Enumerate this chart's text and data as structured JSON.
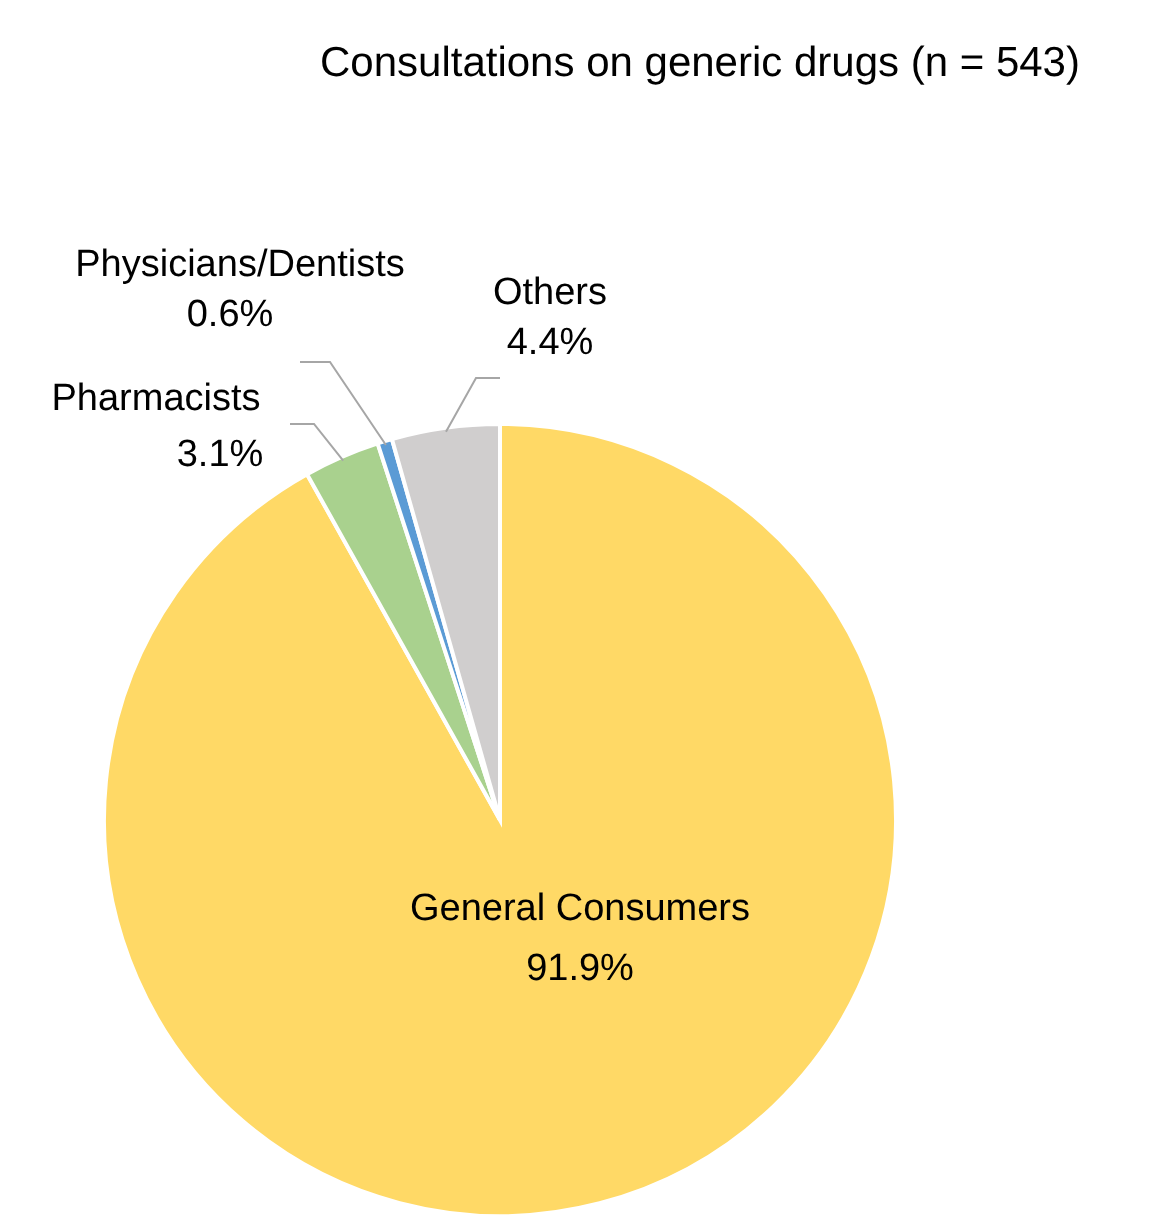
{
  "chart_data": {
    "type": "pie",
    "title": "Consultations on generic drugs (n = 543)",
    "categories": [
      "General Consumers",
      "Pharmacists",
      "Physicians/Dentists",
      "Others"
    ],
    "values": [
      91.9,
      3.1,
      0.6,
      4.4
    ],
    "value_labels": [
      "91.9%",
      "3.1%",
      "0.6%",
      "4.4%"
    ],
    "colors": [
      "#ffd966",
      "#a9d18e",
      "#5b9bd5",
      "#d0cece"
    ]
  }
}
